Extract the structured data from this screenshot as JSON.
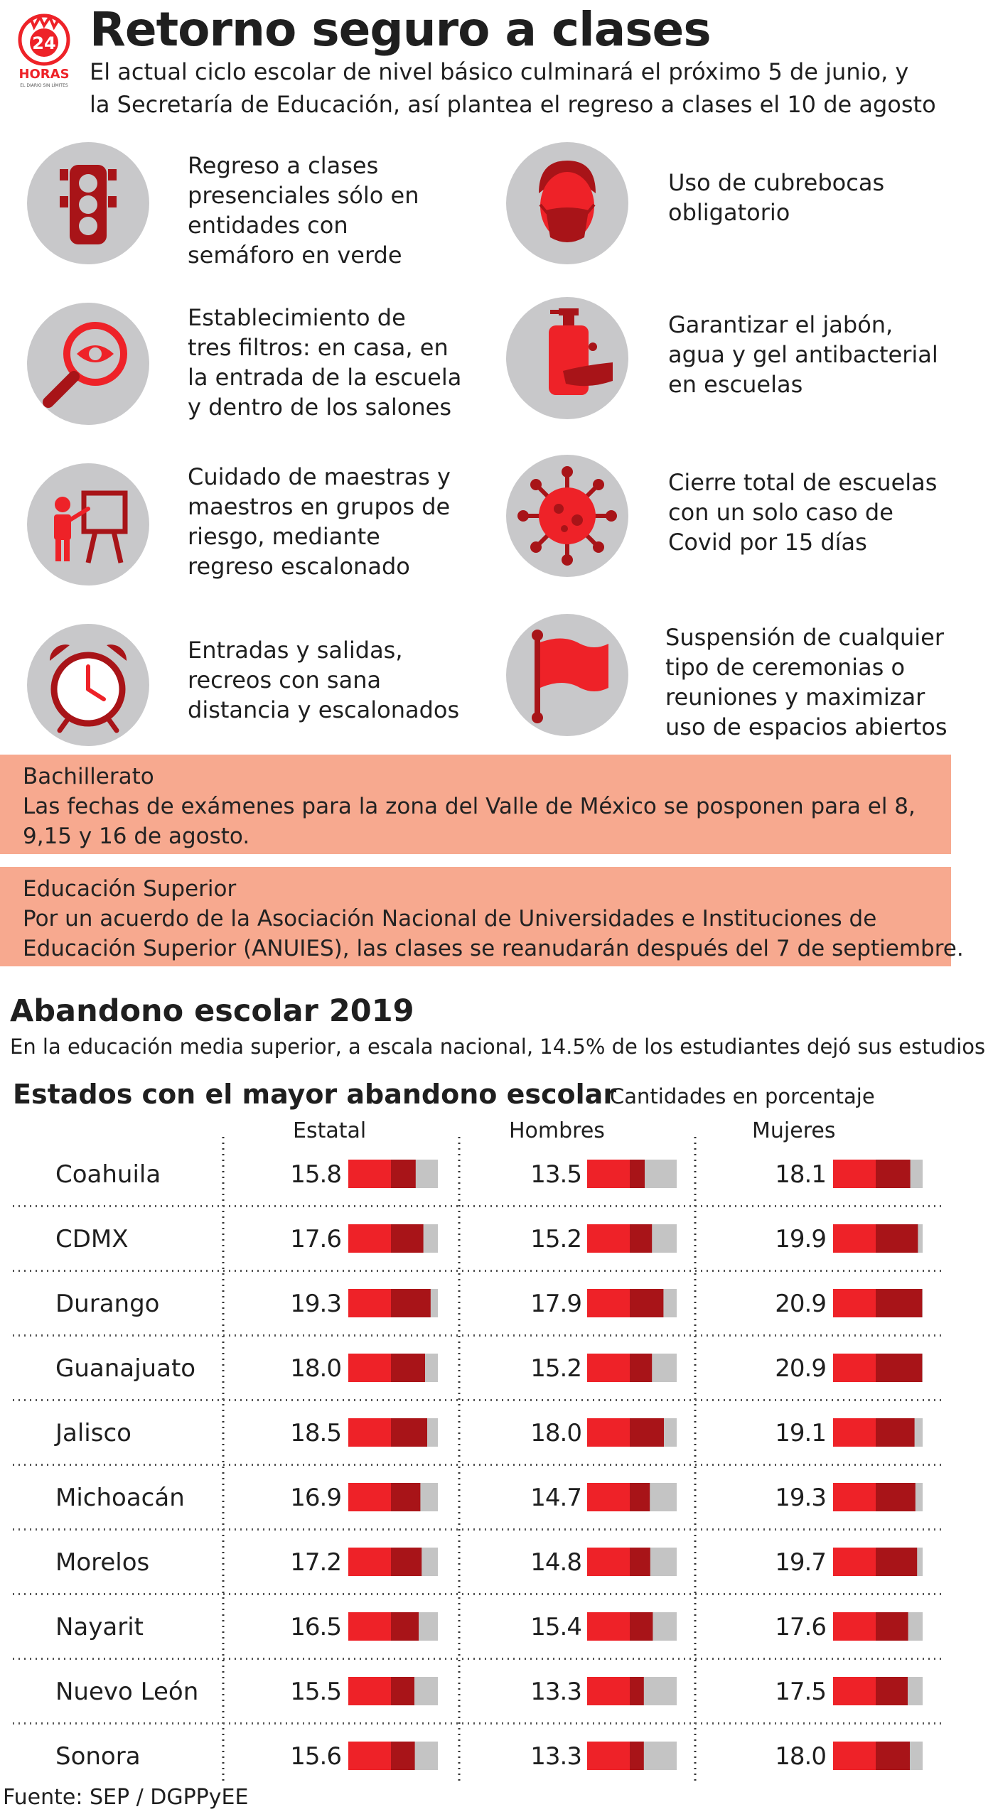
{
  "header": {
    "logo_text": "24 HORAS",
    "logo_tagline": "EL DIARIO SIN LÍMITES",
    "title": "Retorno seguro a clases",
    "subtitle_lines": [
      "El actual ciclo escolar de nivel básico culminará el próximo 5 de junio, y",
      "la Secretaría de Educación, así plantea el regreso a clases el 10 de agosto"
    ]
  },
  "measures": [
    {
      "icon": "traffic-light-icon",
      "lines": [
        "Regreso a clases",
        "presenciales sólo en",
        "entidades con",
        "semáforo en verde"
      ]
    },
    {
      "icon": "face-mask-icon",
      "lines": [
        "Uso de cubrebocas",
        "obligatorio"
      ]
    },
    {
      "icon": "magnifier-eye-icon",
      "lines": [
        "Establecimiento de",
        "tres filtros: en casa, en",
        "la entrada de la escuela",
        "y dentro de los salones"
      ]
    },
    {
      "icon": "soap-dispenser-icon",
      "lines": [
        "Garantizar el jabón,",
        "agua y gel antibacterial",
        "en escuelas"
      ]
    },
    {
      "icon": "teacher-board-icon",
      "lines": [
        "Cuidado de maestras y",
        "maestros en grupos de",
        "riesgo, mediante",
        "regreso escalonado"
      ]
    },
    {
      "icon": "virus-icon",
      "lines": [
        "Cierre total de escuelas",
        "con un solo caso de",
        "Covid por 15 días"
      ]
    },
    {
      "icon": "alarm-clock-icon",
      "lines": [
        "Entradas y salidas,",
        "recreos con sana",
        "distancia y escalonados"
      ]
    },
    {
      "icon": "flag-icon",
      "lines": [
        "Suspensión de cualquier",
        "tipo de ceremonias o",
        "reuniones y maximizar",
        "uso de espacios abiertos"
      ]
    }
  ],
  "notices": [
    {
      "heading": "Bachillerato",
      "lines": [
        "Las fechas de exámenes para la zona del Valle de México se posponen para el 8,",
        "9,15 y 16 de agosto."
      ]
    },
    {
      "heading": "Educación Superior",
      "lines": [
        "Por un acuerdo de la Asociación Nacional de Universidades e Instituciones de",
        "Educación Superior (ANUIES), las clases se reanudarán después del 7 de septiembre."
      ]
    }
  ],
  "dropout": {
    "title": "Abandono escolar 2019",
    "subtitle": "En la educación media superior, a escala nacional, 14.5% de los estudiantes dejó sus estudios",
    "table_title": "Estados con el mayor abandono escolar",
    "units": "Cantidades en porcentaje"
  },
  "source": "Fuente: SEP / DGPPyEE",
  "colors": {
    "accent": "#ee2228",
    "dark_red": "#a81418",
    "bar_bg": "#c4c4c4",
    "icon_circle": "#c8c8ca",
    "notice_bg": "#f7a98f"
  },
  "chart_data": {
    "type": "bar",
    "orientation": "horizontal",
    "categories": [
      "Coahuila",
      "CDMX",
      "Durango",
      "Guanajuato",
      "Jalisco",
      "Michoacán",
      "Morelos",
      "Nayarit",
      "Nuevo León",
      "Sonora"
    ],
    "series": [
      {
        "name": "Estatal",
        "values": [
          "15.8",
          "17.6",
          "19.3",
          "18.0",
          "18.5",
          "16.9",
          "17.2",
          "16.5",
          "15.5",
          "15.6"
        ]
      },
      {
        "name": "Hombres",
        "values": [
          "13.5",
          "15.2",
          "17.9",
          "15.2",
          "18.0",
          "14.7",
          "14.8",
          "15.4",
          "13.3",
          "13.3"
        ]
      },
      {
        "name": "Mujeres",
        "values": [
          "18.1",
          "19.9",
          "20.9",
          "20.9",
          "19.1",
          "19.3",
          "19.7",
          "17.6",
          "17.5",
          "18.0"
        ]
      }
    ],
    "xlim": [
      0,
      21
    ],
    "gridlines": "dotted"
  }
}
